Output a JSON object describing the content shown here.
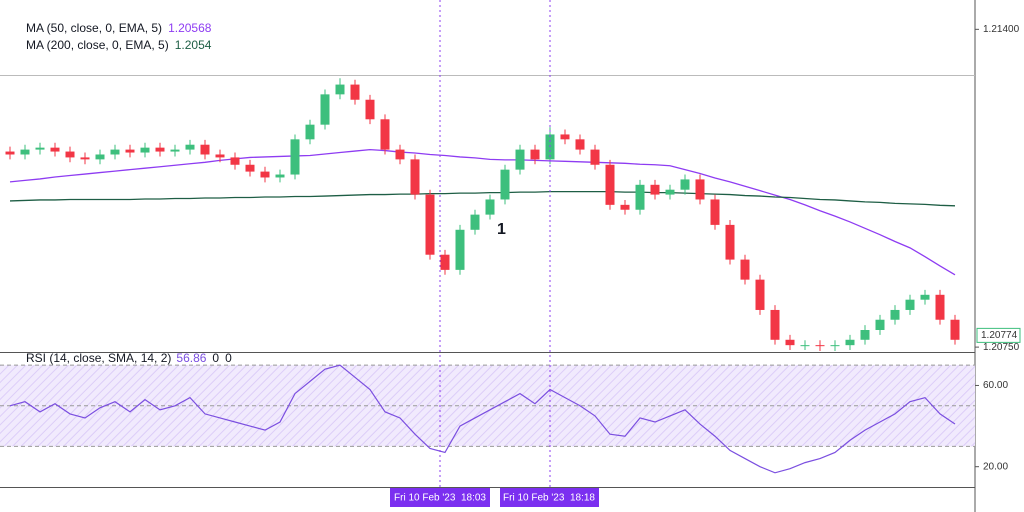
{
  "chart_data": {
    "type": "candlestick",
    "ylim": [
      1.2074,
      1.2146
    ],
    "yticks": [
      {
        "value": 1.214,
        "label": "1.21400"
      },
      {
        "value": 1.2075,
        "label": "1.20750"
      }
    ],
    "up_color": "#3dbf7d",
    "down_color": "#f23645",
    "open": [
      1.2115,
      1.21144,
      1.21154,
      1.21158,
      1.2115,
      1.21138,
      1.21134,
      1.21144,
      1.21154,
      1.21148,
      1.21158,
      1.2115,
      1.21154,
      1.21164,
      1.21144,
      1.21138,
      1.21123,
      1.21109,
      1.21097,
      1.21103,
      1.21175,
      1.21205,
      1.21267,
      1.21287,
      1.21256,
      1.21216,
      1.21154,
      1.21134,
      1.21062,
      1.20939,
      1.20908,
      1.2099,
      1.21021,
      1.21052,
      1.21113,
      1.21154,
      1.21134,
      1.21185,
      1.21175,
      1.21154,
      1.21123,
      1.21041,
      1.21031,
      1.21082,
      1.21062,
      1.21072,
      1.21093,
      1.21052,
      1.21,
      1.20929,
      1.20888,
      1.20826,
      1.20765,
      1.20754,
      1.20754,
      1.20752,
      1.20754,
      1.20765,
      1.20785,
      1.20806,
      1.20826,
      1.20847,
      1.20857,
      1.20806
    ],
    "high": [
      1.2116,
      1.21164,
      1.21168,
      1.21168,
      1.2116,
      1.21148,
      1.21154,
      1.21164,
      1.21164,
      1.21168,
      1.21168,
      1.21164,
      1.21174,
      1.21174,
      1.21154,
      1.21148,
      1.21133,
      1.21119,
      1.21113,
      1.21185,
      1.21215,
      1.21277,
      1.213,
      1.21297,
      1.21266,
      1.21226,
      1.21164,
      1.21144,
      1.21072,
      1.20949,
      1.21,
      1.21031,
      1.21062,
      1.21123,
      1.21164,
      1.21164,
      1.212,
      1.21195,
      1.21185,
      1.21164,
      1.21133,
      1.21051,
      1.21092,
      1.21092,
      1.21082,
      1.21103,
      1.21103,
      1.21062,
      1.2101,
      1.20939,
      1.20898,
      1.20836,
      1.20775,
      1.20764,
      1.20764,
      1.20764,
      1.20775,
      1.20795,
      1.20816,
      1.20836,
      1.20857,
      1.20867,
      1.20867,
      1.20816
    ],
    "low": [
      1.21134,
      1.21134,
      1.21144,
      1.2114,
      1.21128,
      1.21124,
      1.21124,
      1.21134,
      1.21138,
      1.21138,
      1.2114,
      1.2114,
      1.21144,
      1.21134,
      1.21128,
      1.21113,
      1.21099,
      1.21087,
      1.21087,
      1.21093,
      1.21165,
      1.21195,
      1.21257,
      1.21246,
      1.21206,
      1.21144,
      1.21124,
      1.21052,
      1.20929,
      1.20898,
      1.20898,
      1.2098,
      1.21011,
      1.21042,
      1.21103,
      1.21124,
      1.21124,
      1.21165,
      1.21144,
      1.21113,
      1.21031,
      1.21021,
      1.21021,
      1.21052,
      1.21052,
      1.21062,
      1.21042,
      1.2099,
      1.20919,
      1.20878,
      1.20816,
      1.20755,
      1.20744,
      1.20744,
      1.20742,
      1.20742,
      1.20744,
      1.20755,
      1.20775,
      1.20796,
      1.20816,
      1.20837,
      1.20796,
      1.20755
    ],
    "close": [
      1.21144,
      1.21154,
      1.21158,
      1.2115,
      1.21138,
      1.21134,
      1.21144,
      1.21154,
      1.21148,
      1.21158,
      1.2115,
      1.21154,
      1.21164,
      1.21144,
      1.21138,
      1.21123,
      1.21109,
      1.21097,
      1.21103,
      1.21175,
      1.21205,
      1.21267,
      1.21287,
      1.21256,
      1.21216,
      1.21154,
      1.21134,
      1.21062,
      1.20939,
      1.20908,
      1.2099,
      1.21021,
      1.21052,
      1.21113,
      1.21154,
      1.21134,
      1.21185,
      1.21175,
      1.21154,
      1.21123,
      1.21041,
      1.21031,
      1.21082,
      1.21062,
      1.21072,
      1.21093,
      1.21052,
      1.21,
      1.20929,
      1.20888,
      1.20826,
      1.20765,
      1.20754,
      1.20754,
      1.20752,
      1.20754,
      1.20765,
      1.20785,
      1.20806,
      1.20826,
      1.20847,
      1.20857,
      1.20806,
      1.20765
    ],
    "last_price": 1.20774,
    "series": [
      {
        "name": "MA (50, close, 0, EMA, 5)",
        "value": 1.20568,
        "color": "#8e3cf2",
        "values": [
          1.21088,
          1.21091,
          1.21094,
          1.21098,
          1.21101,
          1.21104,
          1.21107,
          1.2111,
          1.21113,
          1.21116,
          1.21119,
          1.21122,
          1.21125,
          1.21128,
          1.21132,
          1.21135,
          1.21138,
          1.21139,
          1.2114,
          1.21141,
          1.21142,
          1.21145,
          1.21148,
          1.21151,
          1.21154,
          1.21152,
          1.21149,
          1.21147,
          1.21144,
          1.21142,
          1.21139,
          1.21137,
          1.21134,
          1.21133,
          1.21133,
          1.21132,
          1.21131,
          1.2113,
          1.21129,
          1.21128,
          1.21127,
          1.21126,
          1.21124,
          1.21123,
          1.21121,
          1.21113,
          1.21105,
          1.21096,
          1.21088,
          1.21079,
          1.2107,
          1.21061,
          1.21052,
          1.21041,
          1.21029,
          1.21018,
          1.21006,
          1.20993,
          1.2098,
          1.20966,
          1.20953,
          1.20935,
          1.20916,
          1.20898
        ]
      },
      {
        "name": "MA (200, close, 0, EMA, 5)",
        "value": 1.2054,
        "color": "#1e5e45",
        "values": [
          1.21049,
          1.2105,
          1.21051,
          1.21051,
          1.21052,
          1.21052,
          1.21052,
          1.21052,
          1.21052,
          1.21053,
          1.21053,
          1.21054,
          1.21054,
          1.21055,
          1.21055,
          1.21056,
          1.21056,
          1.21057,
          1.21057,
          1.21058,
          1.21058,
          1.21059,
          1.2106,
          1.21061,
          1.21062,
          1.21062,
          1.21063,
          1.21063,
          1.21064,
          1.21064,
          1.21065,
          1.21065,
          1.21066,
          1.21066,
          1.21067,
          1.21067,
          1.21068,
          1.21068,
          1.21068,
          1.21068,
          1.21068,
          1.21067,
          1.21067,
          1.21066,
          1.21066,
          1.21065,
          1.21064,
          1.21063,
          1.21062,
          1.2106,
          1.21059,
          1.21057,
          1.21056,
          1.21054,
          1.21052,
          1.21051,
          1.21049,
          1.21047,
          1.21046,
          1.21044,
          1.21043,
          1.21042,
          1.2104,
          1.21039
        ]
      }
    ],
    "annotation": "1",
    "rsi": {
      "type": "line",
      "name": "RSI (14, close, SMA, 14, 2)",
      "readouts": [
        56.86,
        0,
        0
      ],
      "color": "#7b4fe0",
      "ylim": [
        10,
        75
      ],
      "yticks": [
        {
          "value": 60,
          "label": "60.00"
        },
        {
          "value": 20,
          "label": "20.00"
        }
      ],
      "levels": [
        30,
        50,
        70
      ],
      "values": [
        50,
        52,
        47,
        51,
        46,
        44,
        49,
        52,
        47,
        53,
        48,
        50,
        54,
        46,
        44,
        42,
        40,
        38,
        42,
        56,
        62,
        68,
        70,
        64,
        58,
        47,
        44,
        36,
        29,
        27,
        40,
        44,
        48,
        52,
        56,
        51,
        58,
        54,
        50,
        45,
        36,
        35,
        44,
        42,
        45,
        48,
        41,
        35,
        28,
        24,
        20,
        17,
        19,
        22,
        24,
        27,
        33,
        38,
        42,
        46,
        52,
        54,
        46,
        41
      ]
    },
    "crosshair_labels": [
      "Fri 10 Feb '23  18:03",
      "Fri 10 Feb '23  18:18"
    ]
  }
}
